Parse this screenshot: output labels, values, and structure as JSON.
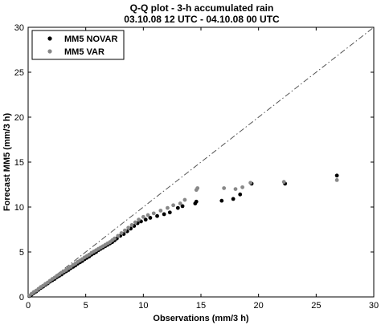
{
  "chart_data": {
    "type": "scatter",
    "title": "Q-Q plot - 3-h accumulated rain",
    "subtitle": "03.10.08 12 UTC - 04.10.08 00 UTC",
    "xlabel": "Observations (mm/3 h)",
    "ylabel": "Forecast MM5 (mm/3 h)",
    "xlim": [
      0,
      30
    ],
    "ylim": [
      0,
      30
    ],
    "xticks": [
      0,
      5,
      10,
      15,
      20,
      25,
      30
    ],
    "yticks": [
      0,
      5,
      10,
      15,
      20,
      25,
      30
    ],
    "grid": false,
    "legend_position": "top-left",
    "reference_line": {
      "x": [
        0,
        30
      ],
      "y": [
        0,
        30
      ],
      "style": "dash-dot",
      "color": "#555555"
    },
    "series": [
      {
        "name": "MM5 NOVAR",
        "color": "#000000",
        "points": [
          [
            0.1,
            0.1
          ],
          [
            0.3,
            0.25
          ],
          [
            0.5,
            0.45
          ],
          [
            0.7,
            0.6
          ],
          [
            0.9,
            0.8
          ],
          [
            1.1,
            1.0
          ],
          [
            1.3,
            1.15
          ],
          [
            1.5,
            1.35
          ],
          [
            1.7,
            1.5
          ],
          [
            1.9,
            1.7
          ],
          [
            2.1,
            1.85
          ],
          [
            2.3,
            2.0
          ],
          [
            2.5,
            2.2
          ],
          [
            2.7,
            2.35
          ],
          [
            2.9,
            2.5
          ],
          [
            3.1,
            2.7
          ],
          [
            3.3,
            2.85
          ],
          [
            3.5,
            3.0
          ],
          [
            3.7,
            3.2
          ],
          [
            3.9,
            3.35
          ],
          [
            4.1,
            3.5
          ],
          [
            4.3,
            3.7
          ],
          [
            4.5,
            3.85
          ],
          [
            4.7,
            4.0
          ],
          [
            4.9,
            4.2
          ],
          [
            5.1,
            4.35
          ],
          [
            5.3,
            4.5
          ],
          [
            5.5,
            4.7
          ],
          [
            5.7,
            4.85
          ],
          [
            5.9,
            5.0
          ],
          [
            6.1,
            5.2
          ],
          [
            6.3,
            5.35
          ],
          [
            6.5,
            5.5
          ],
          [
            6.7,
            5.65
          ],
          [
            6.9,
            5.8
          ],
          [
            7.1,
            5.95
          ],
          [
            7.3,
            6.1
          ],
          [
            7.5,
            6.3
          ],
          [
            7.7,
            6.5
          ],
          [
            8.0,
            6.8
          ],
          [
            8.3,
            7.0
          ],
          [
            8.6,
            7.3
          ],
          [
            8.9,
            7.6
          ],
          [
            9.2,
            7.9
          ],
          [
            9.5,
            8.2
          ],
          [
            9.8,
            8.4
          ],
          [
            10.2,
            8.6
          ],
          [
            10.6,
            8.8
          ],
          [
            11.2,
            9.0
          ],
          [
            11.8,
            9.2
          ],
          [
            12.3,
            9.4
          ],
          [
            13.0,
            9.9
          ],
          [
            13.4,
            10.1
          ],
          [
            14.5,
            10.4
          ],
          [
            14.6,
            10.6
          ],
          [
            16.8,
            10.7
          ],
          [
            17.8,
            10.9
          ],
          [
            18.4,
            11.4
          ],
          [
            19.4,
            12.6
          ],
          [
            22.3,
            12.6
          ],
          [
            26.8,
            13.5
          ]
        ]
      },
      {
        "name": "MM5 VAR",
        "color": "#888888",
        "points": [
          [
            0.1,
            0.15
          ],
          [
            0.3,
            0.35
          ],
          [
            0.5,
            0.55
          ],
          [
            0.7,
            0.7
          ],
          [
            0.9,
            0.9
          ],
          [
            1.1,
            1.1
          ],
          [
            1.3,
            1.25
          ],
          [
            1.5,
            1.45
          ],
          [
            1.7,
            1.6
          ],
          [
            1.9,
            1.8
          ],
          [
            2.1,
            2.0
          ],
          [
            2.3,
            2.15
          ],
          [
            2.5,
            2.35
          ],
          [
            2.7,
            2.5
          ],
          [
            2.9,
            2.7
          ],
          [
            3.1,
            2.85
          ],
          [
            3.3,
            3.0
          ],
          [
            3.5,
            3.2
          ],
          [
            3.7,
            3.35
          ],
          [
            3.9,
            3.55
          ],
          [
            4.1,
            3.7
          ],
          [
            4.3,
            3.9
          ],
          [
            4.5,
            4.05
          ],
          [
            4.7,
            4.2
          ],
          [
            4.9,
            4.4
          ],
          [
            5.1,
            4.55
          ],
          [
            5.3,
            4.7
          ],
          [
            5.5,
            4.9
          ],
          [
            5.7,
            5.05
          ],
          [
            5.9,
            5.2
          ],
          [
            6.1,
            5.35
          ],
          [
            6.3,
            5.5
          ],
          [
            6.5,
            5.65
          ],
          [
            6.7,
            5.8
          ],
          [
            6.9,
            5.95
          ],
          [
            7.1,
            6.1
          ],
          [
            7.3,
            6.3
          ],
          [
            7.5,
            6.5
          ],
          [
            7.8,
            6.8
          ],
          [
            8.1,
            7.1
          ],
          [
            8.4,
            7.4
          ],
          [
            8.7,
            7.7
          ],
          [
            9.0,
            8.0
          ],
          [
            9.3,
            8.3
          ],
          [
            9.6,
            8.6
          ],
          [
            10.0,
            8.9
          ],
          [
            10.4,
            9.1
          ],
          [
            10.9,
            9.3
          ],
          [
            11.5,
            9.6
          ],
          [
            12.1,
            9.9
          ],
          [
            12.6,
            10.2
          ],
          [
            13.2,
            10.4
          ],
          [
            13.6,
            10.8
          ],
          [
            14.6,
            11.9
          ],
          [
            14.7,
            12.1
          ],
          [
            17.0,
            12.1
          ],
          [
            18.0,
            12.0
          ],
          [
            18.6,
            12.2
          ],
          [
            19.3,
            12.7
          ],
          [
            22.2,
            12.8
          ],
          [
            26.8,
            13.0
          ]
        ]
      }
    ]
  }
}
